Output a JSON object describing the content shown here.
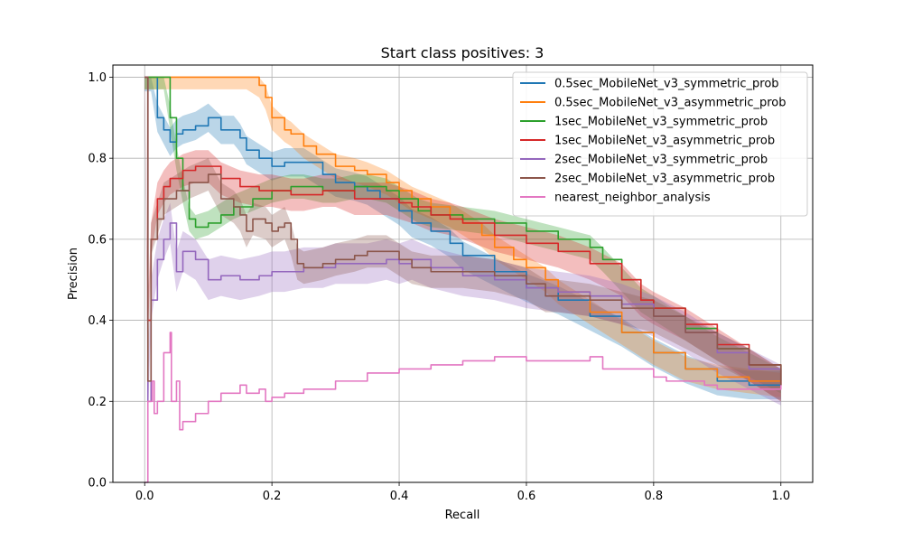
{
  "chart_data": {
    "type": "line",
    "title": "Start class positives: 3",
    "xlabel": "Recall",
    "ylabel": "Precision",
    "xlim": [
      -0.05,
      1.05
    ],
    "ylim": [
      0.0,
      1.03
    ],
    "xticks": [
      "0.0",
      "0.2",
      "0.4",
      "0.6",
      "0.8",
      "1.0"
    ],
    "yticks": [
      "0.0",
      "0.2",
      "0.4",
      "0.6",
      "0.8",
      "1.0"
    ],
    "grid": true,
    "legend_position": "top-right",
    "series": [
      {
        "name": "0.5sec_MobileNet_v3_symmetric_prob",
        "color": "#1f77b4",
        "band": 0.035,
        "x": [
          0.0,
          0.01,
          0.02,
          0.03,
          0.04,
          0.05,
          0.06,
          0.08,
          0.1,
          0.12,
          0.14,
          0.15,
          0.16,
          0.18,
          0.2,
          0.22,
          0.25,
          0.28,
          0.3,
          0.33,
          0.35,
          0.37,
          0.4,
          0.42,
          0.45,
          0.48,
          0.5,
          0.55,
          0.6,
          0.65,
          0.7,
          0.75,
          0.8,
          0.85,
          0.9,
          0.95,
          1.0
        ],
        "y": [
          1.0,
          1.0,
          0.9,
          0.87,
          0.84,
          0.86,
          0.87,
          0.88,
          0.9,
          0.87,
          0.87,
          0.85,
          0.82,
          0.8,
          0.78,
          0.79,
          0.79,
          0.76,
          0.74,
          0.73,
          0.72,
          0.7,
          0.67,
          0.64,
          0.62,
          0.59,
          0.56,
          0.52,
          0.48,
          0.45,
          0.41,
          0.37,
          0.32,
          0.28,
          0.25,
          0.24,
          0.24
        ]
      },
      {
        "name": "0.5sec_MobileNet_v3_asymmetric_prob",
        "color": "#ff7f0e",
        "band": 0.03,
        "x": [
          0.0,
          0.05,
          0.1,
          0.15,
          0.16,
          0.18,
          0.19,
          0.2,
          0.22,
          0.23,
          0.25,
          0.27,
          0.3,
          0.33,
          0.35,
          0.38,
          0.4,
          0.42,
          0.45,
          0.48,
          0.5,
          0.53,
          0.55,
          0.58,
          0.6,
          0.63,
          0.65,
          0.7,
          0.75,
          0.8,
          0.85,
          0.9,
          0.95,
          1.0
        ],
        "y": [
          1.0,
          1.0,
          1.0,
          1.0,
          1.0,
          0.98,
          0.95,
          0.9,
          0.87,
          0.86,
          0.83,
          0.81,
          0.78,
          0.77,
          0.76,
          0.74,
          0.72,
          0.7,
          0.68,
          0.66,
          0.64,
          0.61,
          0.58,
          0.55,
          0.53,
          0.5,
          0.47,
          0.42,
          0.37,
          0.32,
          0.28,
          0.26,
          0.25,
          0.24
        ]
      },
      {
        "name": "1sec_MobileNet_v3_symmetric_prob",
        "color": "#2ca02c",
        "band": 0.03,
        "x": [
          0.0,
          0.02,
          0.03,
          0.04,
          0.05,
          0.06,
          0.07,
          0.08,
          0.1,
          0.12,
          0.14,
          0.17,
          0.2,
          0.23,
          0.25,
          0.28,
          0.3,
          0.33,
          0.35,
          0.38,
          0.4,
          0.43,
          0.45,
          0.5,
          0.55,
          0.6,
          0.65,
          0.7,
          0.72,
          0.75,
          0.78,
          0.8,
          0.85,
          0.9,
          0.95,
          1.0
        ],
        "y": [
          1.0,
          1.0,
          1.0,
          0.9,
          0.8,
          0.72,
          0.65,
          0.63,
          0.64,
          0.66,
          0.68,
          0.7,
          0.72,
          0.73,
          0.73,
          0.72,
          0.72,
          0.73,
          0.73,
          0.72,
          0.7,
          0.67,
          0.66,
          0.65,
          0.64,
          0.62,
          0.6,
          0.58,
          0.55,
          0.5,
          0.45,
          0.43,
          0.38,
          0.33,
          0.29,
          0.25
        ]
      },
      {
        "name": "1sec_MobileNet_v3_asymmetric_prob",
        "color": "#d62728",
        "band": 0.04,
        "x": [
          0.0,
          0.005,
          0.01,
          0.02,
          0.03,
          0.04,
          0.06,
          0.08,
          0.1,
          0.12,
          0.15,
          0.18,
          0.2,
          0.23,
          0.25,
          0.28,
          0.3,
          0.33,
          0.35,
          0.38,
          0.4,
          0.42,
          0.45,
          0.48,
          0.5,
          0.55,
          0.6,
          0.65,
          0.7,
          0.75,
          0.78,
          0.8,
          0.85,
          0.9,
          0.95,
          1.0
        ],
        "y": [
          1.0,
          0.4,
          0.6,
          0.7,
          0.73,
          0.75,
          0.77,
          0.78,
          0.78,
          0.75,
          0.73,
          0.72,
          0.72,
          0.71,
          0.71,
          0.72,
          0.72,
          0.7,
          0.7,
          0.7,
          0.69,
          0.68,
          0.66,
          0.65,
          0.64,
          0.61,
          0.59,
          0.57,
          0.54,
          0.5,
          0.45,
          0.43,
          0.39,
          0.34,
          0.29,
          0.24
        ]
      },
      {
        "name": "2sec_MobileNet_v3_symmetric_prob",
        "color": "#9467bd",
        "band": 0.05,
        "x": [
          0.0,
          0.005,
          0.01,
          0.02,
          0.03,
          0.04,
          0.05,
          0.06,
          0.08,
          0.1,
          0.12,
          0.15,
          0.18,
          0.2,
          0.22,
          0.25,
          0.28,
          0.3,
          0.33,
          0.35,
          0.38,
          0.4,
          0.42,
          0.45,
          0.5,
          0.55,
          0.6,
          0.65,
          0.7,
          0.75,
          0.8,
          0.85,
          0.9,
          0.95,
          1.0
        ],
        "y": [
          1.0,
          0.2,
          0.45,
          0.55,
          0.6,
          0.64,
          0.52,
          0.57,
          0.55,
          0.5,
          0.51,
          0.5,
          0.51,
          0.52,
          0.52,
          0.53,
          0.53,
          0.54,
          0.54,
          0.54,
          0.55,
          0.54,
          0.55,
          0.53,
          0.51,
          0.5,
          0.48,
          0.47,
          0.46,
          0.44,
          0.41,
          0.37,
          0.32,
          0.28,
          0.24
        ]
      },
      {
        "name": "2sec_MobileNet_v3_asymmetric_prob",
        "color": "#8c564b",
        "band": 0.04,
        "x": [
          0.0,
          0.005,
          0.01,
          0.02,
          0.03,
          0.05,
          0.07,
          0.1,
          0.12,
          0.14,
          0.15,
          0.16,
          0.17,
          0.19,
          0.2,
          0.21,
          0.22,
          0.23,
          0.24,
          0.25,
          0.28,
          0.3,
          0.33,
          0.35,
          0.38,
          0.4,
          0.42,
          0.45,
          0.5,
          0.55,
          0.6,
          0.63,
          0.65,
          0.7,
          0.75,
          0.8,
          0.85,
          0.9,
          0.95,
          1.0
        ],
        "y": [
          1.0,
          0.25,
          0.6,
          0.65,
          0.7,
          0.72,
          0.74,
          0.76,
          0.7,
          0.68,
          0.66,
          0.62,
          0.65,
          0.64,
          0.62,
          0.63,
          0.64,
          0.6,
          0.54,
          0.53,
          0.54,
          0.55,
          0.56,
          0.57,
          0.57,
          0.55,
          0.53,
          0.52,
          0.52,
          0.51,
          0.49,
          0.46,
          0.46,
          0.45,
          0.43,
          0.41,
          0.37,
          0.33,
          0.29,
          0.24
        ]
      },
      {
        "name": "nearest_neighbor_analysis",
        "color": "#e377c2",
        "band": 0,
        "x": [
          0.0,
          0.005,
          0.01,
          0.012,
          0.015,
          0.02,
          0.03,
          0.04,
          0.042,
          0.05,
          0.055,
          0.06,
          0.08,
          0.1,
          0.12,
          0.15,
          0.16,
          0.18,
          0.19,
          0.2,
          0.22,
          0.25,
          0.3,
          0.35,
          0.4,
          0.45,
          0.5,
          0.55,
          0.6,
          0.65,
          0.7,
          0.72,
          0.75,
          0.8,
          0.82,
          0.85,
          0.88,
          0.9,
          0.95,
          1.0
        ],
        "y": [
          0.0,
          0.2,
          0.2,
          0.25,
          0.17,
          0.2,
          0.32,
          0.37,
          0.2,
          0.25,
          0.13,
          0.15,
          0.17,
          0.2,
          0.22,
          0.24,
          0.22,
          0.23,
          0.2,
          0.21,
          0.22,
          0.23,
          0.25,
          0.27,
          0.28,
          0.29,
          0.3,
          0.31,
          0.3,
          0.3,
          0.31,
          0.28,
          0.28,
          0.26,
          0.25,
          0.25,
          0.24,
          0.23,
          0.23,
          0.24
        ]
      }
    ]
  }
}
